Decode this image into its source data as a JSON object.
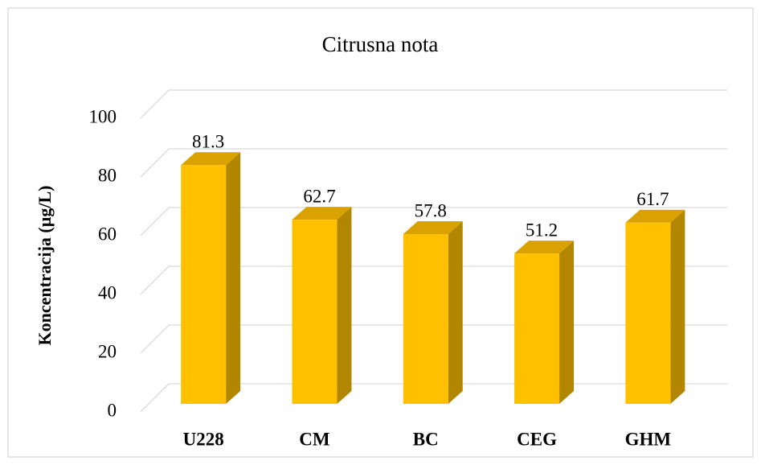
{
  "chart_data": {
    "type": "bar",
    "title": "Citrusna nota",
    "y_label": "Koncentracija (µg/L)",
    "categories": [
      "U228",
      "CM",
      "BC",
      "CEG",
      "GHM"
    ],
    "values": [
      81.3,
      62.7,
      57.8,
      51.2,
      61.7
    ],
    "color": "#ffc000",
    "ylim": [
      0,
      100
    ],
    "yticks": [
      0,
      20,
      40,
      60,
      80,
      100
    ],
    "grid": true
  }
}
